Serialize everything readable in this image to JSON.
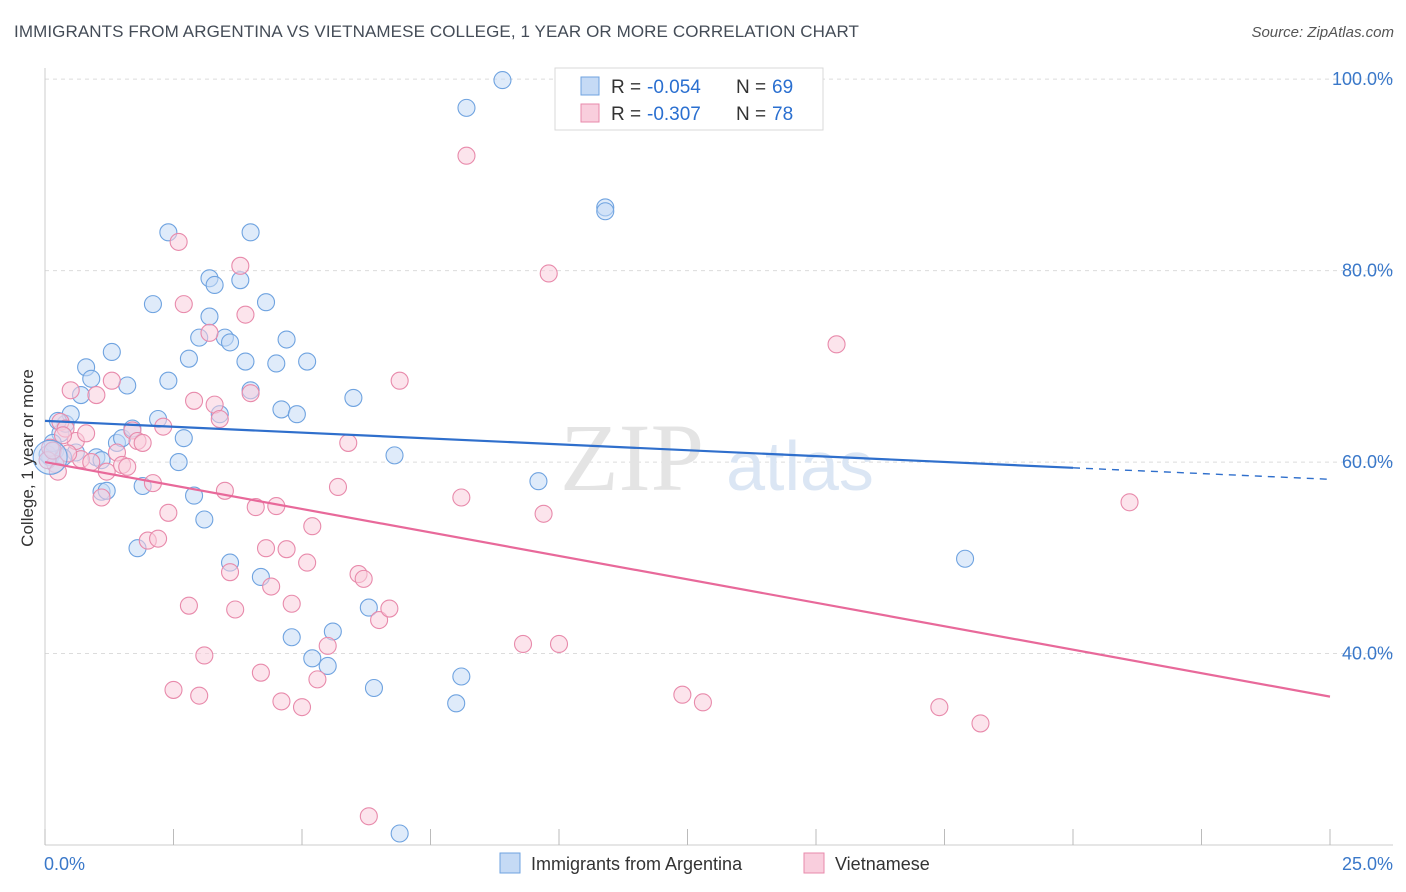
{
  "chart_data": {
    "type": "scatter",
    "title": "IMMIGRANTS FROM ARGENTINA VS VIETNAMESE COLLEGE, 1 YEAR OR MORE CORRELATION CHART",
    "source": "Source: ZipAtlas.com",
    "watermark": {
      "zip": "ZIP",
      "atlas": "atlas"
    },
    "xlabel": "",
    "ylabel": "College, 1 year or more",
    "xlim": [
      0,
      25
    ],
    "ylim": [
      20,
      102
    ],
    "x_tick_labels": {
      "left": "0.0%",
      "right": "25.0%"
    },
    "y_ticks": [
      {
        "value": 100,
        "label": "100.0%"
      },
      {
        "value": 80,
        "label": "80.0%"
      },
      {
        "value": 60,
        "label": "60.0%"
      },
      {
        "value": 40,
        "label": "40.0%"
      }
    ],
    "legend": {
      "rows": [
        {
          "r_label": "R = ",
          "r_value": "-0.054",
          "n_label": "N = ",
          "n_value": "69"
        },
        {
          "r_label": "R = ",
          "r_value": "-0.307",
          "n_label": "N = ",
          "n_value": "78"
        }
      ]
    },
    "series": [
      {
        "name": "Immigrants from Argentina",
        "color": "#6fa3e0",
        "fill": "#c5daf5",
        "line_color": "#2f6fcc",
        "trend": {
          "x0": 0,
          "y0": 64.3,
          "x1": 20,
          "y1": 59.4,
          "dash_to_x": 25,
          "dash_to_y": 58.2
        },
        "points": [
          [
            0.1,
            60.5
          ],
          [
            0.2,
            61.2
          ],
          [
            0.3,
            63
          ],
          [
            0.4,
            64
          ],
          [
            0.5,
            65
          ],
          [
            0.6,
            61
          ],
          [
            0.7,
            67
          ],
          [
            0.8,
            69.9
          ],
          [
            0.9,
            68.7
          ],
          [
            1.0,
            60.5
          ],
          [
            1.1,
            60.2
          ],
          [
            1.1,
            56.9
          ],
          [
            1.2,
            57
          ],
          [
            1.3,
            71.5
          ],
          [
            1.4,
            62
          ],
          [
            1.5,
            62.5
          ],
          [
            1.6,
            68
          ],
          [
            1.7,
            63.5
          ],
          [
            1.9,
            57.5
          ],
          [
            1.8,
            51
          ],
          [
            2.1,
            76.5
          ],
          [
            2.2,
            64.5
          ],
          [
            2.4,
            68.5
          ],
          [
            2.4,
            84
          ],
          [
            2.6,
            60
          ],
          [
            2.7,
            62.5
          ],
          [
            2.8,
            70.8
          ],
          [
            2.9,
            56.5
          ],
          [
            3.0,
            73
          ],
          [
            3.1,
            54
          ],
          [
            3.2,
            79.2
          ],
          [
            3.2,
            75.2
          ],
          [
            3.3,
            78.5
          ],
          [
            3.4,
            65
          ],
          [
            3.5,
            73
          ],
          [
            3.6,
            72.5
          ],
          [
            3.6,
            49.5
          ],
          [
            3.8,
            79
          ],
          [
            3.9,
            70.5
          ],
          [
            4.0,
            67.5
          ],
          [
            4.0,
            84
          ],
          [
            4.2,
            48
          ],
          [
            4.3,
            76.7
          ],
          [
            4.5,
            70.3
          ],
          [
            4.6,
            65.5
          ],
          [
            4.7,
            72.8
          ],
          [
            4.8,
            41.7
          ],
          [
            4.9,
            65
          ],
          [
            5.1,
            70.5
          ],
          [
            5.2,
            39.5
          ],
          [
            5.5,
            38.7
          ],
          [
            5.6,
            42.3
          ],
          [
            6.0,
            66.7
          ],
          [
            6.3,
            44.8
          ],
          [
            6.4,
            36.4
          ],
          [
            6.8,
            60.7
          ],
          [
            6.9,
            21.2
          ],
          [
            8.0,
            34.8
          ],
          [
            8.1,
            37.6
          ],
          [
            8.2,
            97
          ],
          [
            8.9,
            99.9
          ],
          [
            9.6,
            58
          ],
          [
            10.9,
            86.6
          ],
          [
            10.9,
            86.2
          ],
          [
            17.9,
            49.9
          ],
          [
            0.05,
            60.8
          ],
          [
            0.15,
            62
          ],
          [
            0.25,
            64.3
          ],
          [
            0.35,
            60.5
          ]
        ]
      },
      {
        "name": "Vietnamese",
        "color": "#e88aab",
        "fill": "#f9cedd",
        "line_color": "#e8699a",
        "trend": {
          "x0": 0,
          "y0": 60.0,
          "x1": 25,
          "y1": 35.5
        },
        "points": [
          [
            0.1,
            61.5
          ],
          [
            0.2,
            59.8
          ],
          [
            0.3,
            64.2
          ],
          [
            0.4,
            63.5
          ],
          [
            0.5,
            67.5
          ],
          [
            0.6,
            62.2
          ],
          [
            0.7,
            60.3
          ],
          [
            0.8,
            63
          ],
          [
            0.9,
            60
          ],
          [
            1.0,
            67
          ],
          [
            1.1,
            56.3
          ],
          [
            1.2,
            59
          ],
          [
            1.3,
            68.5
          ],
          [
            1.4,
            61
          ],
          [
            1.5,
            59.7
          ],
          [
            1.6,
            59.5
          ],
          [
            1.7,
            63.3
          ],
          [
            1.8,
            62.2
          ],
          [
            1.9,
            62
          ],
          [
            2.0,
            51.8
          ],
          [
            2.1,
            57.8
          ],
          [
            2.2,
            52
          ],
          [
            2.3,
            63.7
          ],
          [
            2.4,
            54.7
          ],
          [
            2.5,
            36.2
          ],
          [
            2.6,
            83
          ],
          [
            2.7,
            76.5
          ],
          [
            2.8,
            45
          ],
          [
            2.9,
            66.4
          ],
          [
            3.0,
            35.6
          ],
          [
            3.1,
            39.8
          ],
          [
            3.2,
            73.5
          ],
          [
            3.3,
            66
          ],
          [
            3.4,
            64.5
          ],
          [
            3.5,
            57
          ],
          [
            3.6,
            48.5
          ],
          [
            3.7,
            44.6
          ],
          [
            3.8,
            80.5
          ],
          [
            3.9,
            75.4
          ],
          [
            4.0,
            67.2
          ],
          [
            4.1,
            55.3
          ],
          [
            4.2,
            38
          ],
          [
            4.3,
            51
          ],
          [
            4.4,
            47
          ],
          [
            4.5,
            55.4
          ],
          [
            4.6,
            35
          ],
          [
            4.7,
            50.9
          ],
          [
            4.8,
            45.2
          ],
          [
            5.0,
            34.4
          ],
          [
            5.1,
            49.5
          ],
          [
            5.2,
            53.3
          ],
          [
            5.3,
            37.3
          ],
          [
            5.5,
            40.8
          ],
          [
            5.7,
            57.4
          ],
          [
            5.9,
            62
          ],
          [
            6.1,
            48.3
          ],
          [
            6.2,
            47.8
          ],
          [
            6.3,
            23
          ],
          [
            6.5,
            43.5
          ],
          [
            6.7,
            44.7
          ],
          [
            6.9,
            68.5
          ],
          [
            8.1,
            56.3
          ],
          [
            8.2,
            92
          ],
          [
            9.3,
            41
          ],
          [
            9.7,
            54.6
          ],
          [
            9.8,
            79.7
          ],
          [
            10.0,
            41
          ],
          [
            12.4,
            35.7
          ],
          [
            12.8,
            34.9
          ],
          [
            15.4,
            72.3
          ],
          [
            17.4,
            34.4
          ],
          [
            18.2,
            32.7
          ],
          [
            21.1,
            55.8
          ],
          [
            0.05,
            60.2
          ],
          [
            0.15,
            61.2
          ],
          [
            0.25,
            59
          ],
          [
            0.35,
            62.8
          ],
          [
            0.45,
            60.9
          ]
        ]
      }
    ]
  }
}
